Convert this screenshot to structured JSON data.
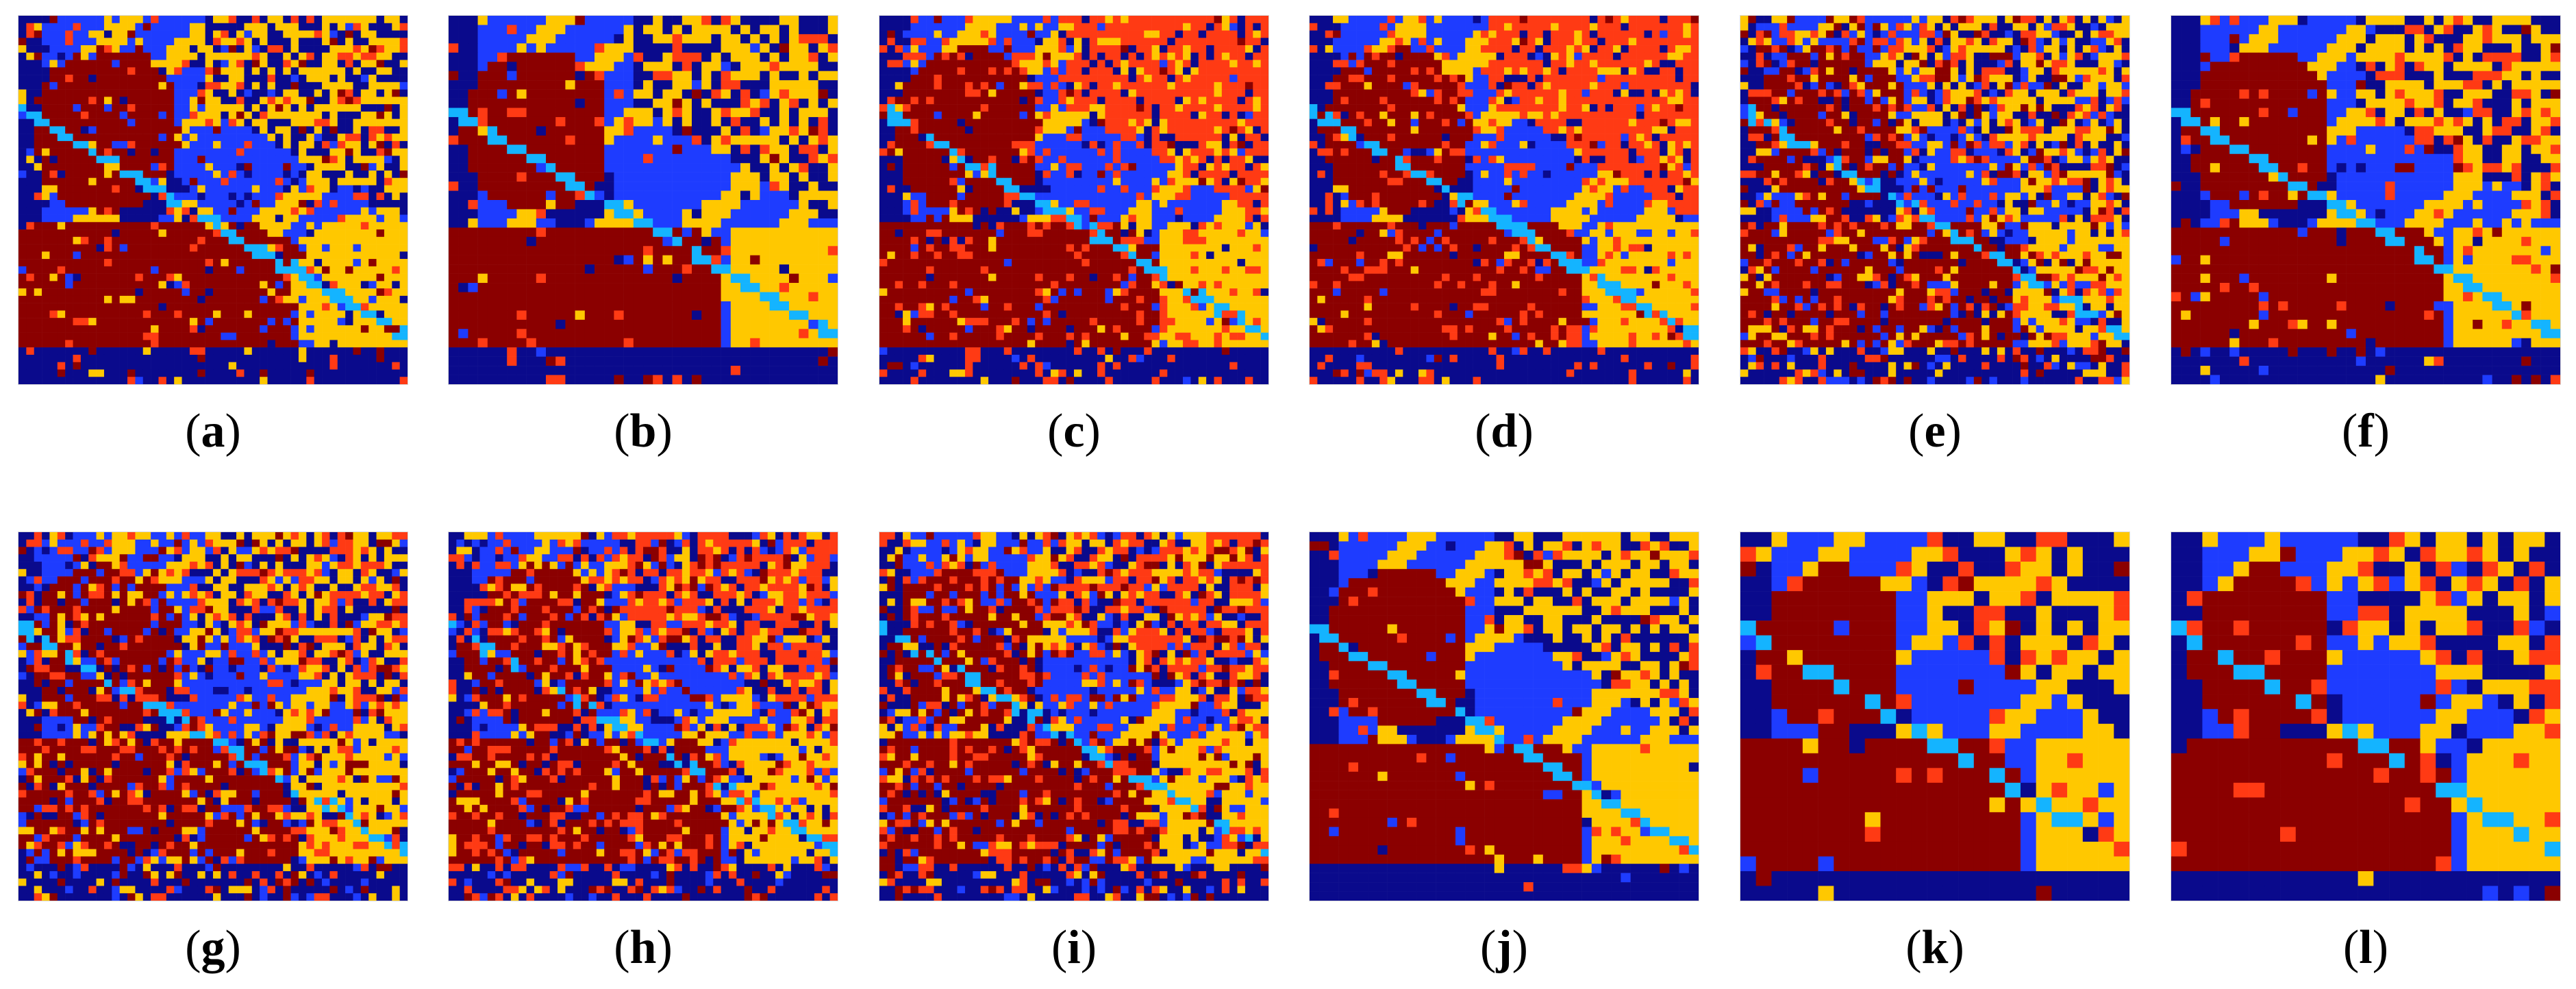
{
  "colors": {
    "dark_red": "#8B0000",
    "blue": "#1E3CFF",
    "navy": "#0A0A8C",
    "yellow": "#FFC800",
    "orange_red": "#FF3A14",
    "cyan": "#14B4FF"
  },
  "panels": [
    {
      "label": "a"
    },
    {
      "label": "b"
    },
    {
      "label": "c"
    },
    {
      "label": "d"
    },
    {
      "label": "e"
    },
    {
      "label": "f"
    },
    {
      "label": "g"
    },
    {
      "label": "h"
    },
    {
      "label": "i"
    },
    {
      "label": "j"
    },
    {
      "label": "k"
    },
    {
      "label": "l"
    }
  ]
}
